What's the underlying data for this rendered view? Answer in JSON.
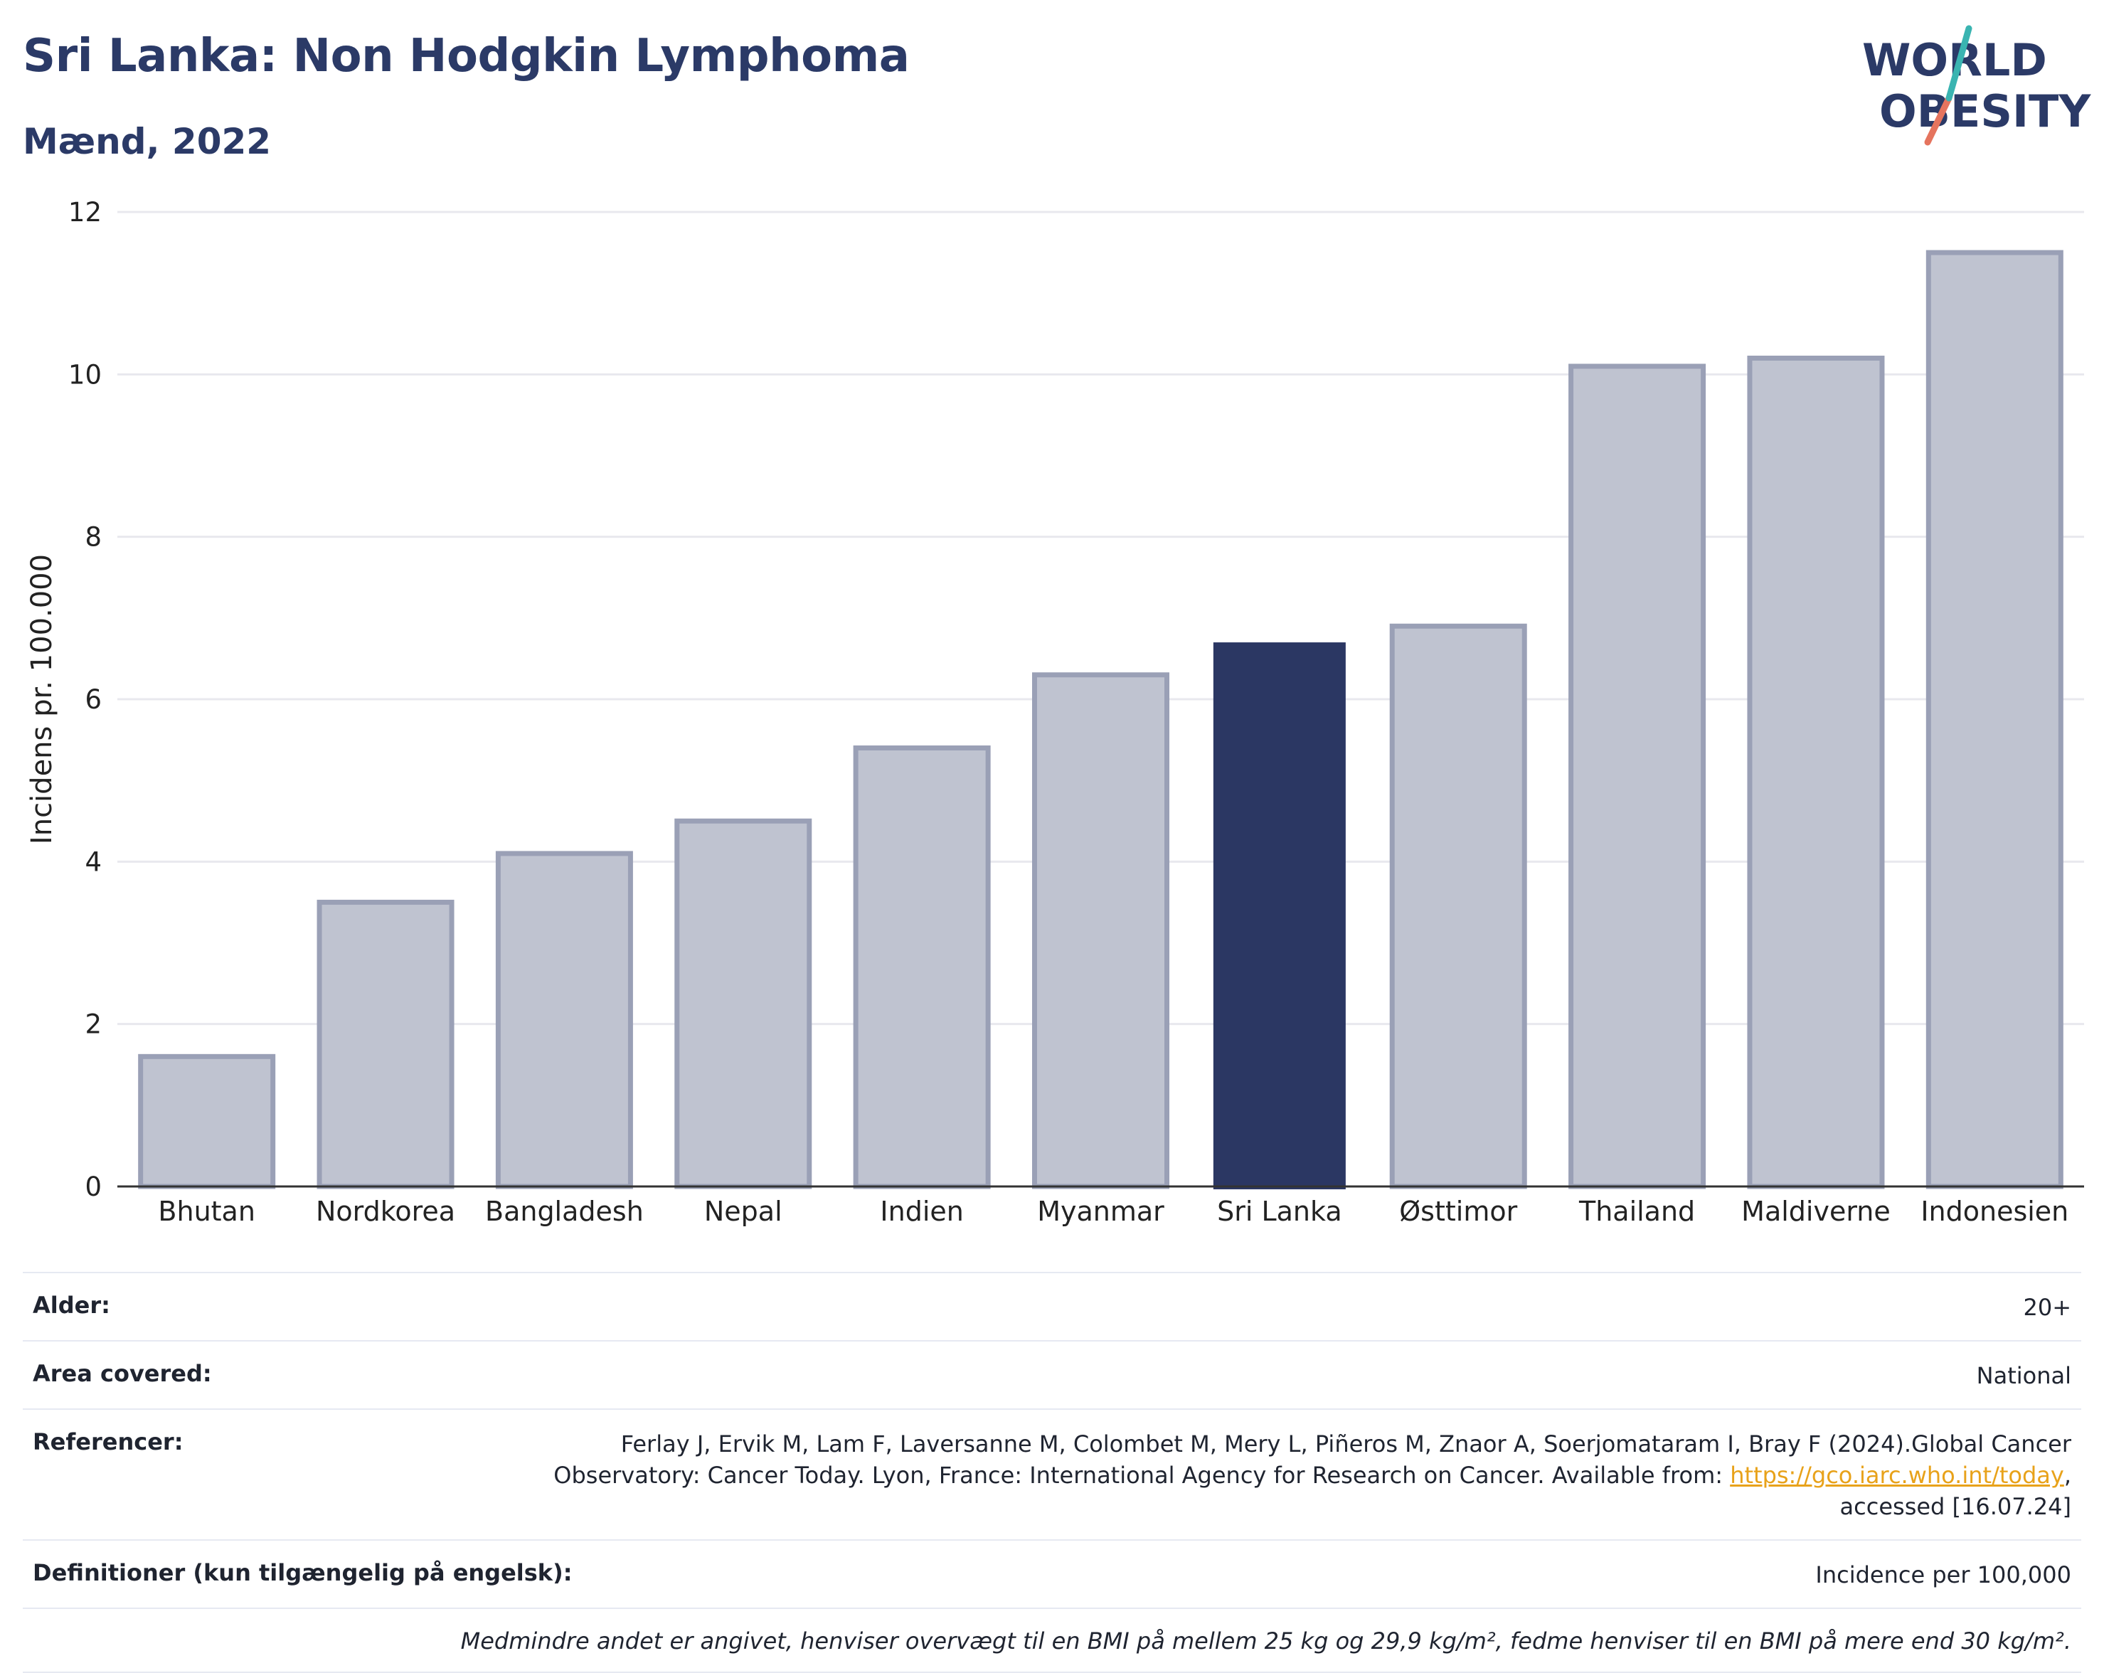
{
  "title": "Sri Lanka: Non Hodgkin Lymphoma",
  "subtitle": "Mænd, 2022",
  "logo": {
    "line1": "WORLD",
    "line2": "OBESITY"
  },
  "chart_data": {
    "type": "bar",
    "categories": [
      "Bhutan",
      "Nordkorea",
      "Bangladesh",
      "Nepal",
      "Indien",
      "Myanmar",
      "Sri Lanka",
      "Østtimor",
      "Thailand",
      "Maldiverne",
      "Indonesien"
    ],
    "values": [
      1.6,
      3.5,
      4.1,
      4.5,
      5.4,
      6.3,
      6.7,
      6.9,
      10.1,
      10.2,
      11.5
    ],
    "highlight": "Sri Lanka",
    "ylabel": "Incidens pr. 100.000",
    "ylim": [
      0,
      12
    ],
    "yticks": [
      0,
      2,
      4,
      6,
      8,
      10,
      12
    ],
    "grid": true,
    "colors": {
      "bar": "#bfc3d0",
      "bar_border": "#9aa0b6",
      "highlight": "#2b3763",
      "grid": "#e8e8ee",
      "axis": "#333333"
    }
  },
  "info": {
    "age_label": "Alder:",
    "age_value": "20+",
    "area_label": "Area covered:",
    "area_value": "National",
    "ref_label": "Referencer:",
    "ref_line1": "Ferlay J, Ervik M, Lam F, Laversanne M, Colombet M, Mery L, Piñeros M, Znaor A, Soerjomataram I, Bray F (2024).Global Cancer",
    "ref_line2_pre": "Observatory: Cancer Today. Lyon, France: International Agency for Research on Cancer. Available from: ",
    "ref_link": "https://gco.iarc.who.int/today",
    "ref_line2_post": ",",
    "ref_line3": "accessed [16.07.24]",
    "def_label": "Definitioner (kun tilgængelig på engelsk):",
    "def_value": "Incidence per 100,000",
    "note": "Medmindre andet er angivet, henviser overvægt til en BMI på mellem 25 kg og 29,9 kg/m², fedme henviser til en BMI på mere end 30 kg/m²."
  }
}
